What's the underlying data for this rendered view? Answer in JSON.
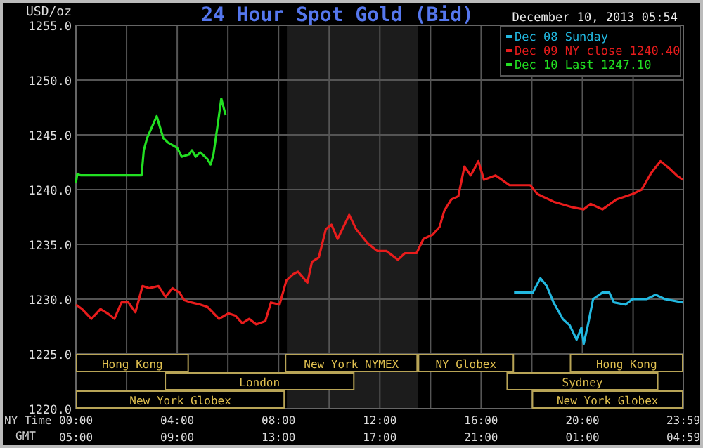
{
  "chart_data": {
    "type": "line",
    "title": "24 Hour Spot Gold (Bid)",
    "subtitle": "December 10, 2013 05:54",
    "ylabel": "USD/oz",
    "xlabel": "NY Time",
    "x2label": "GMT",
    "xlim": [
      0,
      23.983
    ],
    "xticks": [
      {
        "value": 0,
        "label": "00:00"
      },
      {
        "value": 2,
        "label": null
      },
      {
        "value": 4,
        "label": "04:00"
      },
      {
        "value": 6,
        "label": null
      },
      {
        "value": 8,
        "label": "08:00"
      },
      {
        "value": 10,
        "label": null
      },
      {
        "value": 12,
        "label": "12:00"
      },
      {
        "value": 14,
        "label": null
      },
      {
        "value": 16,
        "label": "16:00"
      },
      {
        "value": 18,
        "label": null
      },
      {
        "value": 20,
        "label": "20:00"
      },
      {
        "value": 22,
        "label": null
      },
      {
        "value": 23.983,
        "label": "23:59"
      }
    ],
    "x2lim": [
      "2013-12-09T05:00",
      "2013-12-10T04:59"
    ],
    "x2ticks": [
      {
        "value": "2013-12-09T05:00",
        "label": "05:00"
      },
      {
        "value": "2013-12-09T09:00",
        "label": "09:00"
      },
      {
        "value": "2013-12-09T13:00",
        "label": "13:00"
      },
      {
        "value": "2013-12-09T17:00",
        "label": "17:00"
      },
      {
        "value": "2013-12-09T21:00",
        "label": "21:00"
      },
      {
        "value": "2013-12-10T01:00",
        "label": "01:00"
      },
      {
        "value": "2013-12-10T04:59",
        "label": "04:59"
      }
    ],
    "ylim": [
      1220,
      1255
    ],
    "yticks": [
      {
        "value": 1220,
        "label": "1220.0"
      },
      {
        "value": 1225,
        "label": "1225.0"
      },
      {
        "value": 1230,
        "label": "1230.0"
      },
      {
        "value": 1235,
        "label": "1235.0"
      },
      {
        "value": 1240,
        "label": "1240.0"
      },
      {
        "value": 1245,
        "label": "1245.0"
      },
      {
        "value": 1250,
        "label": "1250.0"
      },
      {
        "value": 1255,
        "label": "1255.0"
      }
    ],
    "grid": true,
    "legend": "top right",
    "line_style": "solid",
    "marker": "none",
    "bands": [
      {
        "axis": "x",
        "from": 8.33,
        "to": 13.5,
        "label": null,
        "color": "#1c1c1c"
      },
      {
        "axis": "x",
        "from": 0,
        "to": 4.46,
        "label": "Hong Kong",
        "color": "#b8a456"
      },
      {
        "axis": "x",
        "from": 19.5,
        "to": 23.983,
        "label": "Hong Kong",
        "color": "#b8a456"
      },
      {
        "axis": "x",
        "from": 3.5,
        "to": 11,
        "label": "London",
        "color": "#b8a456"
      },
      {
        "axis": "x",
        "from": 17,
        "to": 23,
        "label": "Sydney",
        "color": "#b8a456"
      },
      {
        "axis": "x",
        "from": 0,
        "to": 8.25,
        "label": "New York Globex",
        "color": "#b8a456"
      },
      {
        "axis": "x",
        "from": 8.25,
        "to": 13.5,
        "label": "New York NYMEX",
        "color": "#b8a456"
      },
      {
        "axis": "x",
        "from": 13.5,
        "to": 17.3,
        "label": "NY Globex",
        "color": "#b8a456"
      },
      {
        "axis": "x",
        "from": 18,
        "to": 23.983,
        "label": "New York Globex",
        "color": "#b8a456"
      }
    ],
    "series": [
      {
        "name": "Dec 08 Sunday",
        "color": "#22b8e0",
        "x": [
          17.3,
          18.04,
          18.34,
          18.59,
          18.86,
          19.22,
          19.5,
          19.77,
          19.96,
          20.05,
          20.23,
          20.42,
          20.79,
          21.06,
          21.24,
          21.7,
          21.98,
          22.53,
          22.89,
          23.26,
          23.96
        ],
        "values": [
          1230.6,
          1230.6,
          1231.9,
          1231.2,
          1229.7,
          1228.2,
          1227.6,
          1226.3,
          1227.4,
          1225.9,
          1227.8,
          1230.0,
          1230.6,
          1230.6,
          1229.7,
          1229.5,
          1230.0,
          1230.0,
          1230.4,
          1230.0,
          1229.7
        ]
      },
      {
        "name": "Dec 09 NY close 1240.40",
        "color": "#e81c1c",
        "x": [
          0,
          0.24,
          0.61,
          0.97,
          1.25,
          1.52,
          1.8,
          2.07,
          2.35,
          2.63,
          2.9,
          3.26,
          3.54,
          3.81,
          4.09,
          4.28,
          4.55,
          4.91,
          5.19,
          5.65,
          6.02,
          6.29,
          6.57,
          6.84,
          7.12,
          7.48,
          7.7,
          8.04,
          8.31,
          8.59,
          8.77,
          9.14,
          9.32,
          9.59,
          9.87,
          10.09,
          10.33,
          10.69,
          10.79,
          11.06,
          11.52,
          11.89,
          12.26,
          12.71,
          12.99,
          13.45,
          13.72,
          14.09,
          14.36,
          14.55,
          14.82,
          15.1,
          15.34,
          15.59,
          15.89,
          16.11,
          16.57,
          17.12,
          17.94,
          18.22,
          18.86,
          19.59,
          20.05,
          20.32,
          20.79,
          21.34,
          21.98,
          22.34,
          22.71,
          23.08,
          23.45,
          23.72,
          23.96
        ],
        "values": [
          1229.5,
          1229.1,
          1228.2,
          1229.1,
          1228.7,
          1228.2,
          1229.7,
          1229.7,
          1228.8,
          1231.2,
          1231.0,
          1231.2,
          1230.2,
          1231.0,
          1230.6,
          1229.9,
          1229.7,
          1229.5,
          1229.3,
          1228.2,
          1228.7,
          1228.5,
          1227.8,
          1228.2,
          1227.7,
          1228.0,
          1229.7,
          1229.5,
          1231.7,
          1232.3,
          1232.5,
          1231.5,
          1233.4,
          1233.8,
          1236.4,
          1236.8,
          1235.5,
          1237.2,
          1237.7,
          1236.4,
          1235.1,
          1234.4,
          1234.4,
          1233.6,
          1234.2,
          1234.2,
          1235.5,
          1235.9,
          1236.6,
          1238.1,
          1239.1,
          1239.4,
          1242.1,
          1241.3,
          1242.6,
          1240.9,
          1241.3,
          1240.4,
          1240.4,
          1239.6,
          1238.9,
          1238.4,
          1238.2,
          1238.7,
          1238.2,
          1239.1,
          1239.6,
          1240.0,
          1241.5,
          1242.6,
          1241.9,
          1241.3,
          1240.9
        ]
      },
      {
        "name": "Dec 10 Last 1247.10",
        "color": "#22e022",
        "x": [
          0,
          0.05,
          0.2,
          2.59,
          2.68,
          2.81,
          3.19,
          3.45,
          3.63,
          4.0,
          4.18,
          4.46,
          4.58,
          4.73,
          4.91,
          5.19,
          5.32,
          5.43,
          5.56,
          5.74,
          5.91
        ],
        "values": [
          1240.6,
          1241.4,
          1241.3,
          1241.3,
          1243.6,
          1244.7,
          1246.7,
          1244.7,
          1244.3,
          1243.8,
          1243.0,
          1243.2,
          1243.6,
          1243.0,
          1243.4,
          1242.8,
          1242.3,
          1243.2,
          1245.3,
          1248.3,
          1246.8
        ]
      }
    ]
  }
}
